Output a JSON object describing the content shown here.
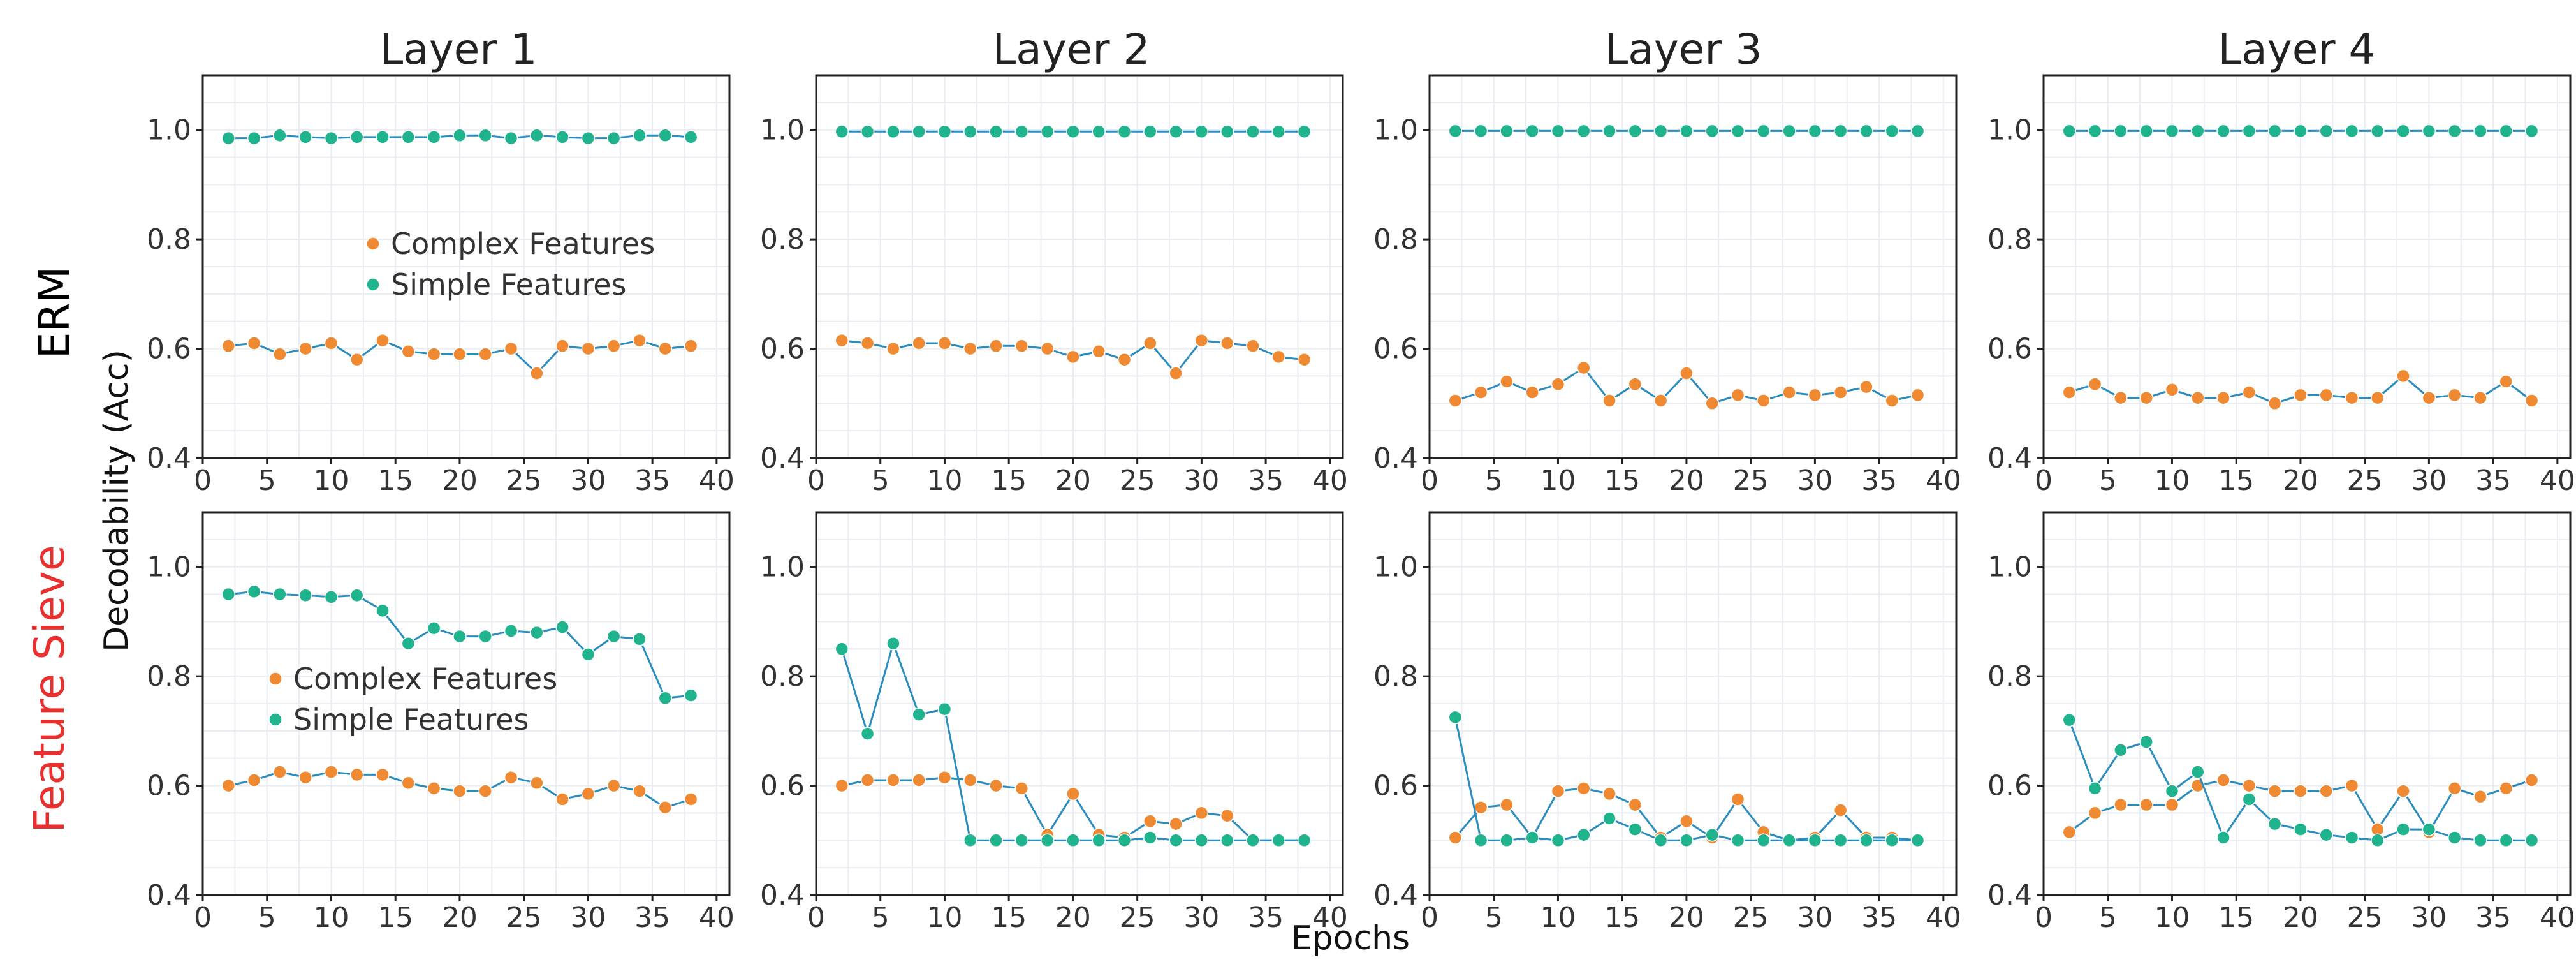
{
  "figure": {
    "column_titles": [
      "Layer 1",
      "Layer 2",
      "Layer 3",
      "Layer 4"
    ],
    "row_labels": [
      {
        "text": "ERM",
        "color": "#000000"
      },
      {
        "text": "Feature Sieve",
        "color": "#e8312f"
      }
    ],
    "ylabel": "Decodability (Acc)",
    "xlabel": "Epochs",
    "colors": {
      "complex": "#ef8a33",
      "simple": "#20b48e",
      "line": "#2b8cbe"
    },
    "legend": {
      "complex": "Complex Features",
      "simple": "Simple Features"
    }
  },
  "chart_data": [
    {
      "type": "line",
      "row": "ERM",
      "title": "Layer 1",
      "xlim": [
        0,
        41
      ],
      "ylim": [
        0.4,
        1.1
      ],
      "xticks": [
        "0",
        "5",
        "10",
        "15",
        "20",
        "25",
        "30",
        "35",
        "40"
      ],
      "yticks": [
        "0.4",
        "0.6",
        "0.8",
        "1.0"
      ],
      "legend": "center-right",
      "x": [
        2,
        4,
        6,
        8,
        10,
        12,
        14,
        16,
        18,
        20,
        22,
        24,
        26,
        28,
        30,
        32,
        34,
        36,
        38
      ],
      "series": [
        {
          "name": "Complex Features",
          "values": [
            0.605,
            0.61,
            0.59,
            0.6,
            0.61,
            0.58,
            0.615,
            0.595,
            0.59,
            0.59,
            0.59,
            0.6,
            0.555,
            0.605,
            0.6,
            0.605,
            0.615,
            0.6,
            0.605
          ]
        },
        {
          "name": "Simple Features",
          "values": [
            0.985,
            0.985,
            0.99,
            0.987,
            0.985,
            0.987,
            0.987,
            0.987,
            0.987,
            0.99,
            0.99,
            0.985,
            0.99,
            0.987,
            0.985,
            0.985,
            0.99,
            0.99,
            0.987
          ]
        }
      ]
    },
    {
      "type": "line",
      "row": "ERM",
      "title": "Layer 2",
      "xlim": [
        0,
        41
      ],
      "ylim": [
        0.4,
        1.1
      ],
      "xticks": [
        "0",
        "5",
        "10",
        "15",
        "20",
        "25",
        "30",
        "35",
        "40"
      ],
      "yticks": [
        "0.4",
        "0.6",
        "0.8",
        "1.0"
      ],
      "x": [
        2,
        4,
        6,
        8,
        10,
        12,
        14,
        16,
        18,
        20,
        22,
        24,
        26,
        28,
        30,
        32,
        34,
        36,
        38
      ],
      "series": [
        {
          "name": "Complex Features",
          "values": [
            0.615,
            0.61,
            0.6,
            0.61,
            0.61,
            0.6,
            0.605,
            0.605,
            0.6,
            0.585,
            0.595,
            0.58,
            0.61,
            0.555,
            0.615,
            0.61,
            0.605,
            0.585,
            0.58
          ]
        },
        {
          "name": "Simple Features",
          "values": [
            0.997,
            0.997,
            0.997,
            0.997,
            0.997,
            0.997,
            0.997,
            0.997,
            0.997,
            0.997,
            0.997,
            0.997,
            0.997,
            0.997,
            0.997,
            0.997,
            0.997,
            0.997,
            0.997
          ]
        }
      ]
    },
    {
      "type": "line",
      "row": "ERM",
      "title": "Layer 3",
      "xlim": [
        0,
        41
      ],
      "ylim": [
        0.4,
        1.1
      ],
      "xticks": [
        "0",
        "5",
        "10",
        "15",
        "20",
        "25",
        "30",
        "35",
        "40"
      ],
      "yticks": [
        "0.4",
        "0.6",
        "0.8",
        "1.0"
      ],
      "x": [
        2,
        4,
        6,
        8,
        10,
        12,
        14,
        16,
        18,
        20,
        22,
        24,
        26,
        28,
        30,
        32,
        34,
        36,
        38
      ],
      "series": [
        {
          "name": "Complex Features",
          "values": [
            0.505,
            0.52,
            0.54,
            0.52,
            0.535,
            0.565,
            0.505,
            0.535,
            0.505,
            0.555,
            0.5,
            0.515,
            0.505,
            0.52,
            0.515,
            0.52,
            0.53,
            0.505,
            0.515
          ]
        },
        {
          "name": "Simple Features",
          "values": [
            0.998,
            0.998,
            0.998,
            0.998,
            0.998,
            0.998,
            0.998,
            0.998,
            0.998,
            0.998,
            0.998,
            0.998,
            0.998,
            0.998,
            0.998,
            0.998,
            0.998,
            0.998,
            0.998
          ]
        }
      ]
    },
    {
      "type": "line",
      "row": "ERM",
      "title": "Layer 4",
      "xlim": [
        0,
        41
      ],
      "ylim": [
        0.4,
        1.1
      ],
      "xticks": [
        "0",
        "5",
        "10",
        "15",
        "20",
        "25",
        "30",
        "35",
        "40"
      ],
      "yticks": [
        "0.4",
        "0.6",
        "0.8",
        "1.0"
      ],
      "x": [
        2,
        4,
        6,
        8,
        10,
        12,
        14,
        16,
        18,
        20,
        22,
        24,
        26,
        28,
        30,
        32,
        34,
        36,
        38
      ],
      "series": [
        {
          "name": "Complex Features",
          "values": [
            0.52,
            0.535,
            0.51,
            0.51,
            0.525,
            0.51,
            0.51,
            0.52,
            0.5,
            0.515,
            0.515,
            0.51,
            0.51,
            0.55,
            0.51,
            0.515,
            0.51,
            0.54,
            0.505
          ]
        },
        {
          "name": "Simple Features",
          "values": [
            0.998,
            0.998,
            0.998,
            0.998,
            0.998,
            0.998,
            0.998,
            0.998,
            0.998,
            0.998,
            0.998,
            0.998,
            0.998,
            0.998,
            0.998,
            0.998,
            0.998,
            0.998,
            0.998
          ]
        }
      ]
    },
    {
      "type": "line",
      "row": "Feature Sieve",
      "title": "Layer 1",
      "xlim": [
        0,
        41
      ],
      "ylim": [
        0.4,
        1.1
      ],
      "xticks": [
        "0",
        "5",
        "10",
        "15",
        "20",
        "25",
        "30",
        "35",
        "40"
      ],
      "yticks": [
        "0.4",
        "0.6",
        "0.8",
        "1.0"
      ],
      "legend": "center-left",
      "x": [
        2,
        4,
        6,
        8,
        10,
        12,
        14,
        16,
        18,
        20,
        22,
        24,
        26,
        28,
        30,
        32,
        34,
        36,
        38
      ],
      "series": [
        {
          "name": "Complex Features",
          "values": [
            0.6,
            0.61,
            0.625,
            0.615,
            0.625,
            0.62,
            0.62,
            0.605,
            0.595,
            0.59,
            0.59,
            0.615,
            0.605,
            0.575,
            0.585,
            0.6,
            0.59,
            0.56,
            0.575
          ]
        },
        {
          "name": "Simple Features",
          "values": [
            0.95,
            0.955,
            0.95,
            0.948,
            0.945,
            0.948,
            0.92,
            0.86,
            0.888,
            0.873,
            0.873,
            0.883,
            0.88,
            0.89,
            0.84,
            0.873,
            0.868,
            0.76,
            0.765
          ]
        }
      ]
    },
    {
      "type": "line",
      "row": "Feature Sieve",
      "title": "Layer 2",
      "xlim": [
        0,
        41
      ],
      "ylim": [
        0.4,
        1.1
      ],
      "xticks": [
        "0",
        "5",
        "10",
        "15",
        "20",
        "25",
        "30",
        "35",
        "40"
      ],
      "yticks": [
        "0.4",
        "0.6",
        "0.8",
        "1.0"
      ],
      "x": [
        2,
        4,
        6,
        8,
        10,
        12,
        14,
        16,
        18,
        20,
        22,
        24,
        26,
        28,
        30,
        32,
        34,
        36,
        38
      ],
      "series": [
        {
          "name": "Complex Features",
          "values": [
            0.6,
            0.61,
            0.61,
            0.61,
            0.615,
            0.61,
            0.6,
            0.595,
            0.51,
            0.585,
            0.51,
            0.505,
            0.535,
            0.53,
            0.55,
            0.545,
            0.5,
            0.5,
            0.5
          ]
        },
        {
          "name": "Simple Features",
          "values": [
            0.85,
            0.695,
            0.86,
            0.73,
            0.74,
            0.5,
            0.5,
            0.5,
            0.5,
            0.5,
            0.5,
            0.5,
            0.505,
            0.5,
            0.5,
            0.5,
            0.5,
            0.5,
            0.5
          ]
        }
      ]
    },
    {
      "type": "line",
      "row": "Feature Sieve",
      "title": "Layer 3",
      "xlim": [
        0,
        41
      ],
      "ylim": [
        0.4,
        1.1
      ],
      "xticks": [
        "0",
        "5",
        "10",
        "15",
        "20",
        "25",
        "30",
        "35",
        "40"
      ],
      "yticks": [
        "0.4",
        "0.6",
        "0.8",
        "1.0"
      ],
      "x": [
        2,
        4,
        6,
        8,
        10,
        12,
        14,
        16,
        18,
        20,
        22,
        24,
        26,
        28,
        30,
        32,
        34,
        36,
        38
      ],
      "series": [
        {
          "name": "Complex Features",
          "values": [
            0.505,
            0.56,
            0.565,
            0.505,
            0.59,
            0.595,
            0.585,
            0.565,
            0.505,
            0.535,
            0.505,
            0.575,
            0.515,
            0.5,
            0.505,
            0.555,
            0.505,
            0.505,
            0.5
          ]
        },
        {
          "name": "Simple Features",
          "values": [
            0.725,
            0.5,
            0.5,
            0.505,
            0.5,
            0.51,
            0.54,
            0.52,
            0.5,
            0.5,
            0.51,
            0.5,
            0.5,
            0.5,
            0.5,
            0.5,
            0.5,
            0.5,
            0.5
          ]
        }
      ]
    },
    {
      "type": "line",
      "row": "Feature Sieve",
      "title": "Layer 4",
      "xlim": [
        0,
        41
      ],
      "ylim": [
        0.4,
        1.1
      ],
      "xticks": [
        "0",
        "5",
        "10",
        "15",
        "20",
        "25",
        "30",
        "35",
        "40"
      ],
      "yticks": [
        "0.4",
        "0.6",
        "0.8",
        "1.0"
      ],
      "x": [
        2,
        4,
        6,
        8,
        10,
        12,
        14,
        16,
        18,
        20,
        22,
        24,
        26,
        28,
        30,
        32,
        34,
        36,
        38
      ],
      "series": [
        {
          "name": "Complex Features",
          "values": [
            0.515,
            0.55,
            0.565,
            0.565,
            0.565,
            0.6,
            0.61,
            0.6,
            0.59,
            0.59,
            0.59,
            0.6,
            0.52,
            0.59,
            0.515,
            0.595,
            0.58,
            0.595,
            0.61
          ]
        },
        {
          "name": "Simple Features",
          "values": [
            0.72,
            0.595,
            0.665,
            0.68,
            0.59,
            0.625,
            0.505,
            0.575,
            0.53,
            0.52,
            0.51,
            0.505,
            0.5,
            0.52,
            0.52,
            0.505,
            0.5,
            0.5,
            0.5
          ]
        }
      ]
    }
  ]
}
